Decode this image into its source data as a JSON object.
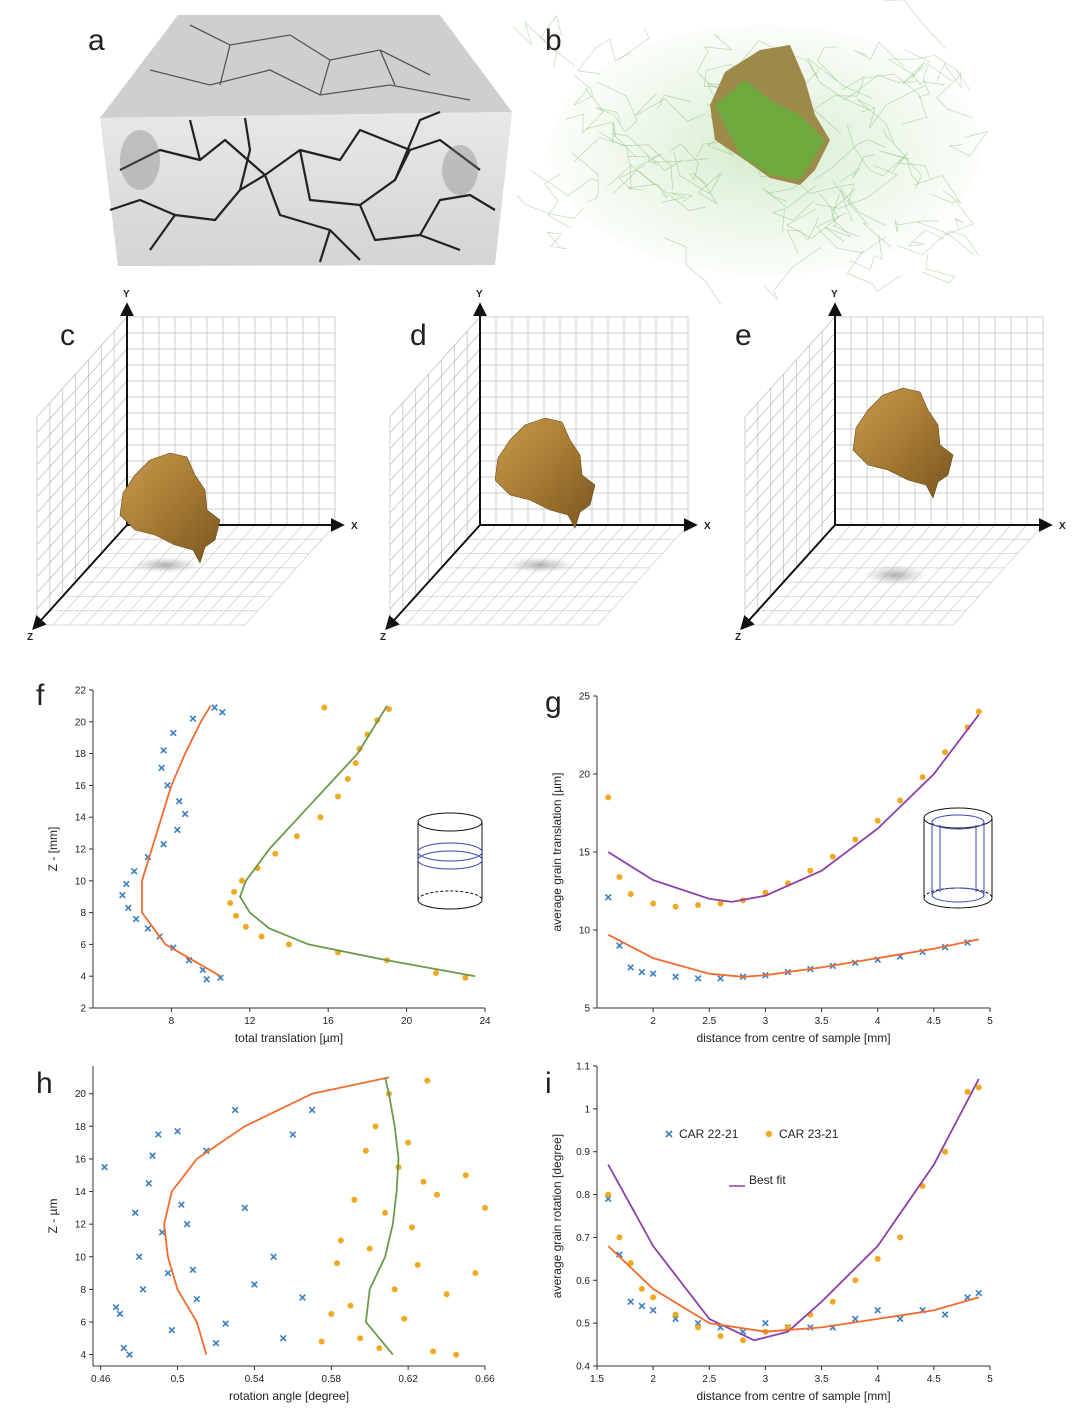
{
  "panel_labels": [
    "a",
    "b",
    "c",
    "d",
    "e",
    "f",
    "g",
    "h",
    "i"
  ],
  "axis_labels_3d": {
    "x": "X",
    "y": "Y",
    "z": "Z"
  },
  "chart_data": [
    {
      "type": "scatter",
      "x_label": "total translation [µm]",
      "y_label": "Z - [mm]",
      "xlim": [
        4,
        24
      ],
      "xticks": [
        8,
        12,
        16,
        20,
        24
      ],
      "ylim": [
        2,
        22
      ],
      "yticks": [
        2,
        4,
        6,
        8,
        10,
        12,
        14,
        16,
        18,
        20,
        22
      ],
      "series": [
        {
          "type": "scatter",
          "marker": "x",
          "color": "#3a7fc1",
          "x": [
            10.5,
            9.6,
            9.8,
            8.9,
            8.1,
            7.4,
            6.8,
            6.2,
            5.8,
            5.5,
            5.7,
            6.1,
            6.8,
            7.6,
            8.3,
            8.7,
            8.4,
            7.8,
            7.5,
            7.6,
            8.1,
            9.1,
            10.2,
            10.6
          ],
          "values": [
            3.9,
            4.4,
            3.8,
            5.0,
            5.8,
            6.5,
            7.0,
            7.6,
            8.3,
            9.1,
            9.8,
            10.6,
            11.5,
            12.3,
            13.2,
            14.2,
            15.0,
            16.0,
            17.1,
            18.2,
            19.3,
            20.2,
            20.9,
            20.6
          ]
        },
        {
          "type": "line",
          "color": "#f26b2f",
          "x": [
            10.5,
            7.7,
            6.5,
            6.5,
            7.0,
            7.5,
            8.0,
            8.7,
            9.5,
            10.0
          ],
          "values": [
            4,
            6,
            8,
            10,
            12,
            14,
            16,
            18,
            20,
            21
          ]
        },
        {
          "type": "scatter",
          "marker": "dot",
          "color": "#f2a922",
          "x": [
            23.0,
            21.5,
            19.0,
            16.5,
            14.0,
            12.6,
            11.8,
            11.3,
            11.0,
            11.2,
            11.6,
            12.4,
            13.3,
            14.4,
            15.6,
            16.5,
            17.0,
            17.4,
            17.6,
            18.0,
            18.5,
            19.1,
            15.8
          ],
          "values": [
            3.9,
            4.2,
            5.0,
            5.5,
            6.0,
            6.5,
            7.1,
            7.8,
            8.6,
            9.3,
            10.0,
            10.8,
            11.7,
            12.8,
            14.0,
            15.3,
            16.4,
            17.4,
            18.3,
            19.2,
            20.1,
            20.8,
            20.9
          ]
        },
        {
          "type": "line",
          "color": "#6b9a4a",
          "x": [
            23.5,
            19.0,
            15.0,
            13.0,
            12.0,
            11.5,
            11.8,
            13.0,
            14.5,
            16.0,
            17.5,
            18.5,
            19.0
          ],
          "values": [
            4,
            5,
            6,
            7,
            8,
            9,
            10,
            12,
            14,
            16,
            18,
            20,
            21
          ]
        }
      ]
    },
    {
      "type": "scatter",
      "x_label": "distance from centre of sample [mm]",
      "y_label": "average grain translation [µm]",
      "xlim": [
        1.5,
        5
      ],
      "xticks": [
        2,
        2.5,
        3,
        3.5,
        4,
        4.5,
        5
      ],
      "ylim": [
        5,
        25
      ],
      "yticks": [
        5,
        10,
        15,
        20,
        25
      ],
      "series": [
        {
          "type": "scatter",
          "marker": "x",
          "color": "#3a7fc1",
          "x": [
            1.6,
            1.7,
            1.8,
            1.9,
            2.0,
            2.2,
            2.4,
            2.6,
            2.8,
            3.0,
            3.2,
            3.4,
            3.6,
            3.8,
            4.0,
            4.2,
            4.4,
            4.6,
            4.8
          ],
          "values": [
            12.1,
            9.0,
            7.6,
            7.3,
            7.2,
            7.0,
            6.9,
            6.9,
            7.0,
            7.1,
            7.3,
            7.5,
            7.7,
            7.9,
            8.1,
            8.3,
            8.6,
            8.9,
            9.2
          ]
        },
        {
          "type": "scatter",
          "marker": "dot",
          "color": "#f2a922",
          "x": [
            1.6,
            1.7,
            1.8,
            2.0,
            2.2,
            2.4,
            2.6,
            2.8,
            3.0,
            3.2,
            3.4,
            3.6,
            3.8,
            4.0,
            4.2,
            4.4,
            4.6,
            4.8,
            4.9
          ],
          "values": [
            18.5,
            13.4,
            12.3,
            11.7,
            11.5,
            11.6,
            11.7,
            11.9,
            12.4,
            13.0,
            13.8,
            14.7,
            15.8,
            17.0,
            18.3,
            19.8,
            21.4,
            23.0,
            24.0
          ]
        },
        {
          "type": "line",
          "color": "#8e3fa8",
          "x": [
            1.6,
            2.0,
            2.5,
            2.7,
            3.0,
            3.5,
            4.0,
            4.5,
            4.9
          ],
          "values": [
            15.0,
            13.2,
            12.0,
            11.8,
            12.2,
            13.8,
            16.5,
            20.0,
            23.8
          ]
        },
        {
          "type": "line",
          "color": "#f26b2f",
          "x": [
            1.6,
            2.0,
            2.5,
            2.8,
            3.0,
            3.5,
            4.0,
            4.5,
            4.9
          ],
          "values": [
            9.7,
            8.2,
            7.2,
            7.0,
            7.1,
            7.6,
            8.2,
            8.8,
            9.4
          ]
        }
      ]
    },
    {
      "type": "scatter",
      "x_label": "rotation angle [degree]",
      "y_label": "Z - µm",
      "xlim": [
        0.456,
        0.66
      ],
      "xticks": [
        0.46,
        0.5,
        0.54,
        0.58,
        0.62,
        0.66
      ],
      "ylim": [
        3.3,
        21.7
      ],
      "yticks": [
        4,
        6,
        8,
        10,
        12,
        14,
        16,
        18,
        20
      ],
      "series": [
        {
          "type": "scatter",
          "marker": "x",
          "color": "#3a7fc1",
          "x": [
            0.462,
            0.468,
            0.47,
            0.472,
            0.475,
            0.478,
            0.48,
            0.482,
            0.485,
            0.487,
            0.49,
            0.492,
            0.495,
            0.497,
            0.5,
            0.502,
            0.505,
            0.508,
            0.51,
            0.515,
            0.52,
            0.525,
            0.53,
            0.535,
            0.54,
            0.55,
            0.555,
            0.56,
            0.565,
            0.57
          ],
          "values": [
            15.5,
            6.9,
            6.5,
            4.4,
            4.0,
            12.7,
            10.0,
            8.0,
            14.5,
            16.2,
            17.5,
            11.5,
            9.0,
            5.5,
            17.7,
            13.2,
            12.0,
            9.2,
            7.4,
            16.5,
            4.7,
            5.9,
            19.0,
            13.0,
            8.3,
            10.0,
            5.0,
            17.5,
            7.5,
            19.0
          ]
        },
        {
          "type": "line",
          "color": "#f26b2f",
          "x": [
            0.515,
            0.51,
            0.5,
            0.495,
            0.493,
            0.497,
            0.51,
            0.535,
            0.57,
            0.61
          ],
          "values": [
            4,
            6,
            8,
            10,
            12,
            14,
            16,
            18,
            20,
            21
          ]
        },
        {
          "type": "scatter",
          "marker": "dot",
          "color": "#f2a922",
          "x": [
            0.575,
            0.58,
            0.583,
            0.585,
            0.59,
            0.592,
            0.595,
            0.598,
            0.6,
            0.603,
            0.605,
            0.608,
            0.61,
            0.613,
            0.615,
            0.618,
            0.62,
            0.622,
            0.625,
            0.628,
            0.63,
            0.633,
            0.635,
            0.64,
            0.645,
            0.65,
            0.655,
            0.66
          ],
          "values": [
            4.8,
            6.5,
            9.6,
            11.0,
            7.0,
            13.5,
            5.0,
            16.5,
            10.5,
            18.0,
            4.4,
            12.7,
            20.0,
            8.0,
            15.5,
            6.2,
            17.0,
            11.8,
            9.5,
            14.6,
            20.8,
            4.2,
            13.8,
            7.7,
            4.0,
            15.0,
            9.0,
            13.0
          ]
        },
        {
          "type": "line",
          "color": "#6b9a4a",
          "x": [
            0.612,
            0.598,
            0.6,
            0.608,
            0.612,
            0.614,
            0.615,
            0.613,
            0.61,
            0.608
          ],
          "values": [
            4,
            6,
            8,
            10,
            12,
            14,
            16,
            18,
            20,
            21
          ]
        }
      ]
    },
    {
      "type": "scatter",
      "x_label": "distance from centre of sample [mm]",
      "y_label": "average grain rotation [degree]",
      "xlim": [
        1.5,
        5
      ],
      "xticks": [
        1.5,
        2,
        2.5,
        3,
        3.5,
        4,
        4.5,
        5
      ],
      "ylim": [
        0.4,
        1.1
      ],
      "yticks": [
        0.4,
        0.5,
        0.6,
        0.7,
        0.8,
        0.9,
        1,
        1.1
      ],
      "legend": "upper left",
      "series": [
        {
          "type": "scatter",
          "marker": "x",
          "color": "#3a7fc1",
          "name": "CAR 22-21",
          "x": [
            1.6,
            1.7,
            1.8,
            1.9,
            2.0,
            2.2,
            2.4,
            2.6,
            2.8,
            3.0,
            3.2,
            3.4,
            3.6,
            3.8,
            4.0,
            4.2,
            4.4,
            4.6,
            4.8,
            4.9
          ],
          "values": [
            0.79,
            0.66,
            0.55,
            0.54,
            0.53,
            0.51,
            0.5,
            0.49,
            0.48,
            0.5,
            0.49,
            0.49,
            0.49,
            0.51,
            0.53,
            0.51,
            0.53,
            0.52,
            0.56,
            0.57
          ]
        },
        {
          "type": "scatter",
          "marker": "dot",
          "color": "#f2a922",
          "name": "CAR 23-21",
          "x": [
            1.6,
            1.7,
            1.8,
            1.9,
            2.0,
            2.2,
            2.4,
            2.6,
            2.8,
            3.0,
            3.2,
            3.4,
            3.6,
            3.8,
            4.0,
            4.2,
            4.4,
            4.6,
            4.8,
            4.9
          ],
          "values": [
            0.8,
            0.7,
            0.64,
            0.58,
            0.56,
            0.52,
            0.49,
            0.47,
            0.46,
            0.48,
            0.49,
            0.52,
            0.55,
            0.6,
            0.65,
            0.7,
            0.82,
            0.9,
            1.04,
            1.05
          ]
        },
        {
          "type": "line",
          "color": "#8e3fa8",
          "name": "Best fit",
          "x": [
            1.6,
            2.0,
            2.5,
            2.9,
            3.2,
            3.5,
            4.0,
            4.5,
            4.9
          ],
          "values": [
            0.87,
            0.68,
            0.51,
            0.46,
            0.48,
            0.55,
            0.68,
            0.87,
            1.07
          ]
        },
        {
          "type": "line",
          "color": "#f26b2f",
          "x": [
            1.6,
            2.0,
            2.5,
            3.0,
            3.5,
            4.0,
            4.5,
            4.9
          ],
          "values": [
            0.68,
            0.58,
            0.5,
            0.48,
            0.49,
            0.51,
            0.53,
            0.56
          ]
        }
      ]
    }
  ]
}
